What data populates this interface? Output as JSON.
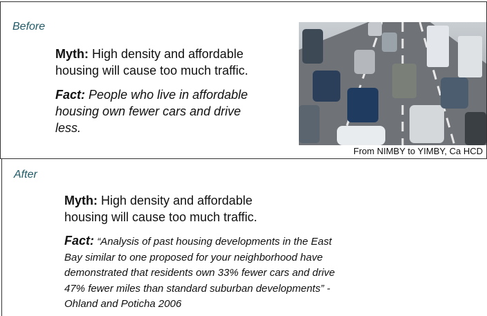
{
  "before": {
    "label": "Before",
    "myth": {
      "label": "Myth:",
      "lines": [
        "High density and affordable",
        "housing will cause too much traffic."
      ]
    },
    "fact": {
      "label": "Fact:",
      "lines": [
        "People who live in affordable",
        "housing own fewer cars and drive",
        "less."
      ]
    },
    "image_caption": "From NIMBY to YIMBY, Ca HCD"
  },
  "after": {
    "label": "After",
    "myth": {
      "label": "Myth:",
      "lines": [
        "High density and affordable",
        "housing will cause too much traffic."
      ]
    },
    "fact": {
      "label": "Fact:",
      "lines": [
        "“Analysis of past housing developments in the East",
        "Bay similar to one proposed for your neighborhood have",
        "demonstrated that residents own 33% fewer cars and drive",
        "47% fewer miles than standard suburban developments” -",
        "Ohland and Poticha 2006"
      ]
    }
  }
}
